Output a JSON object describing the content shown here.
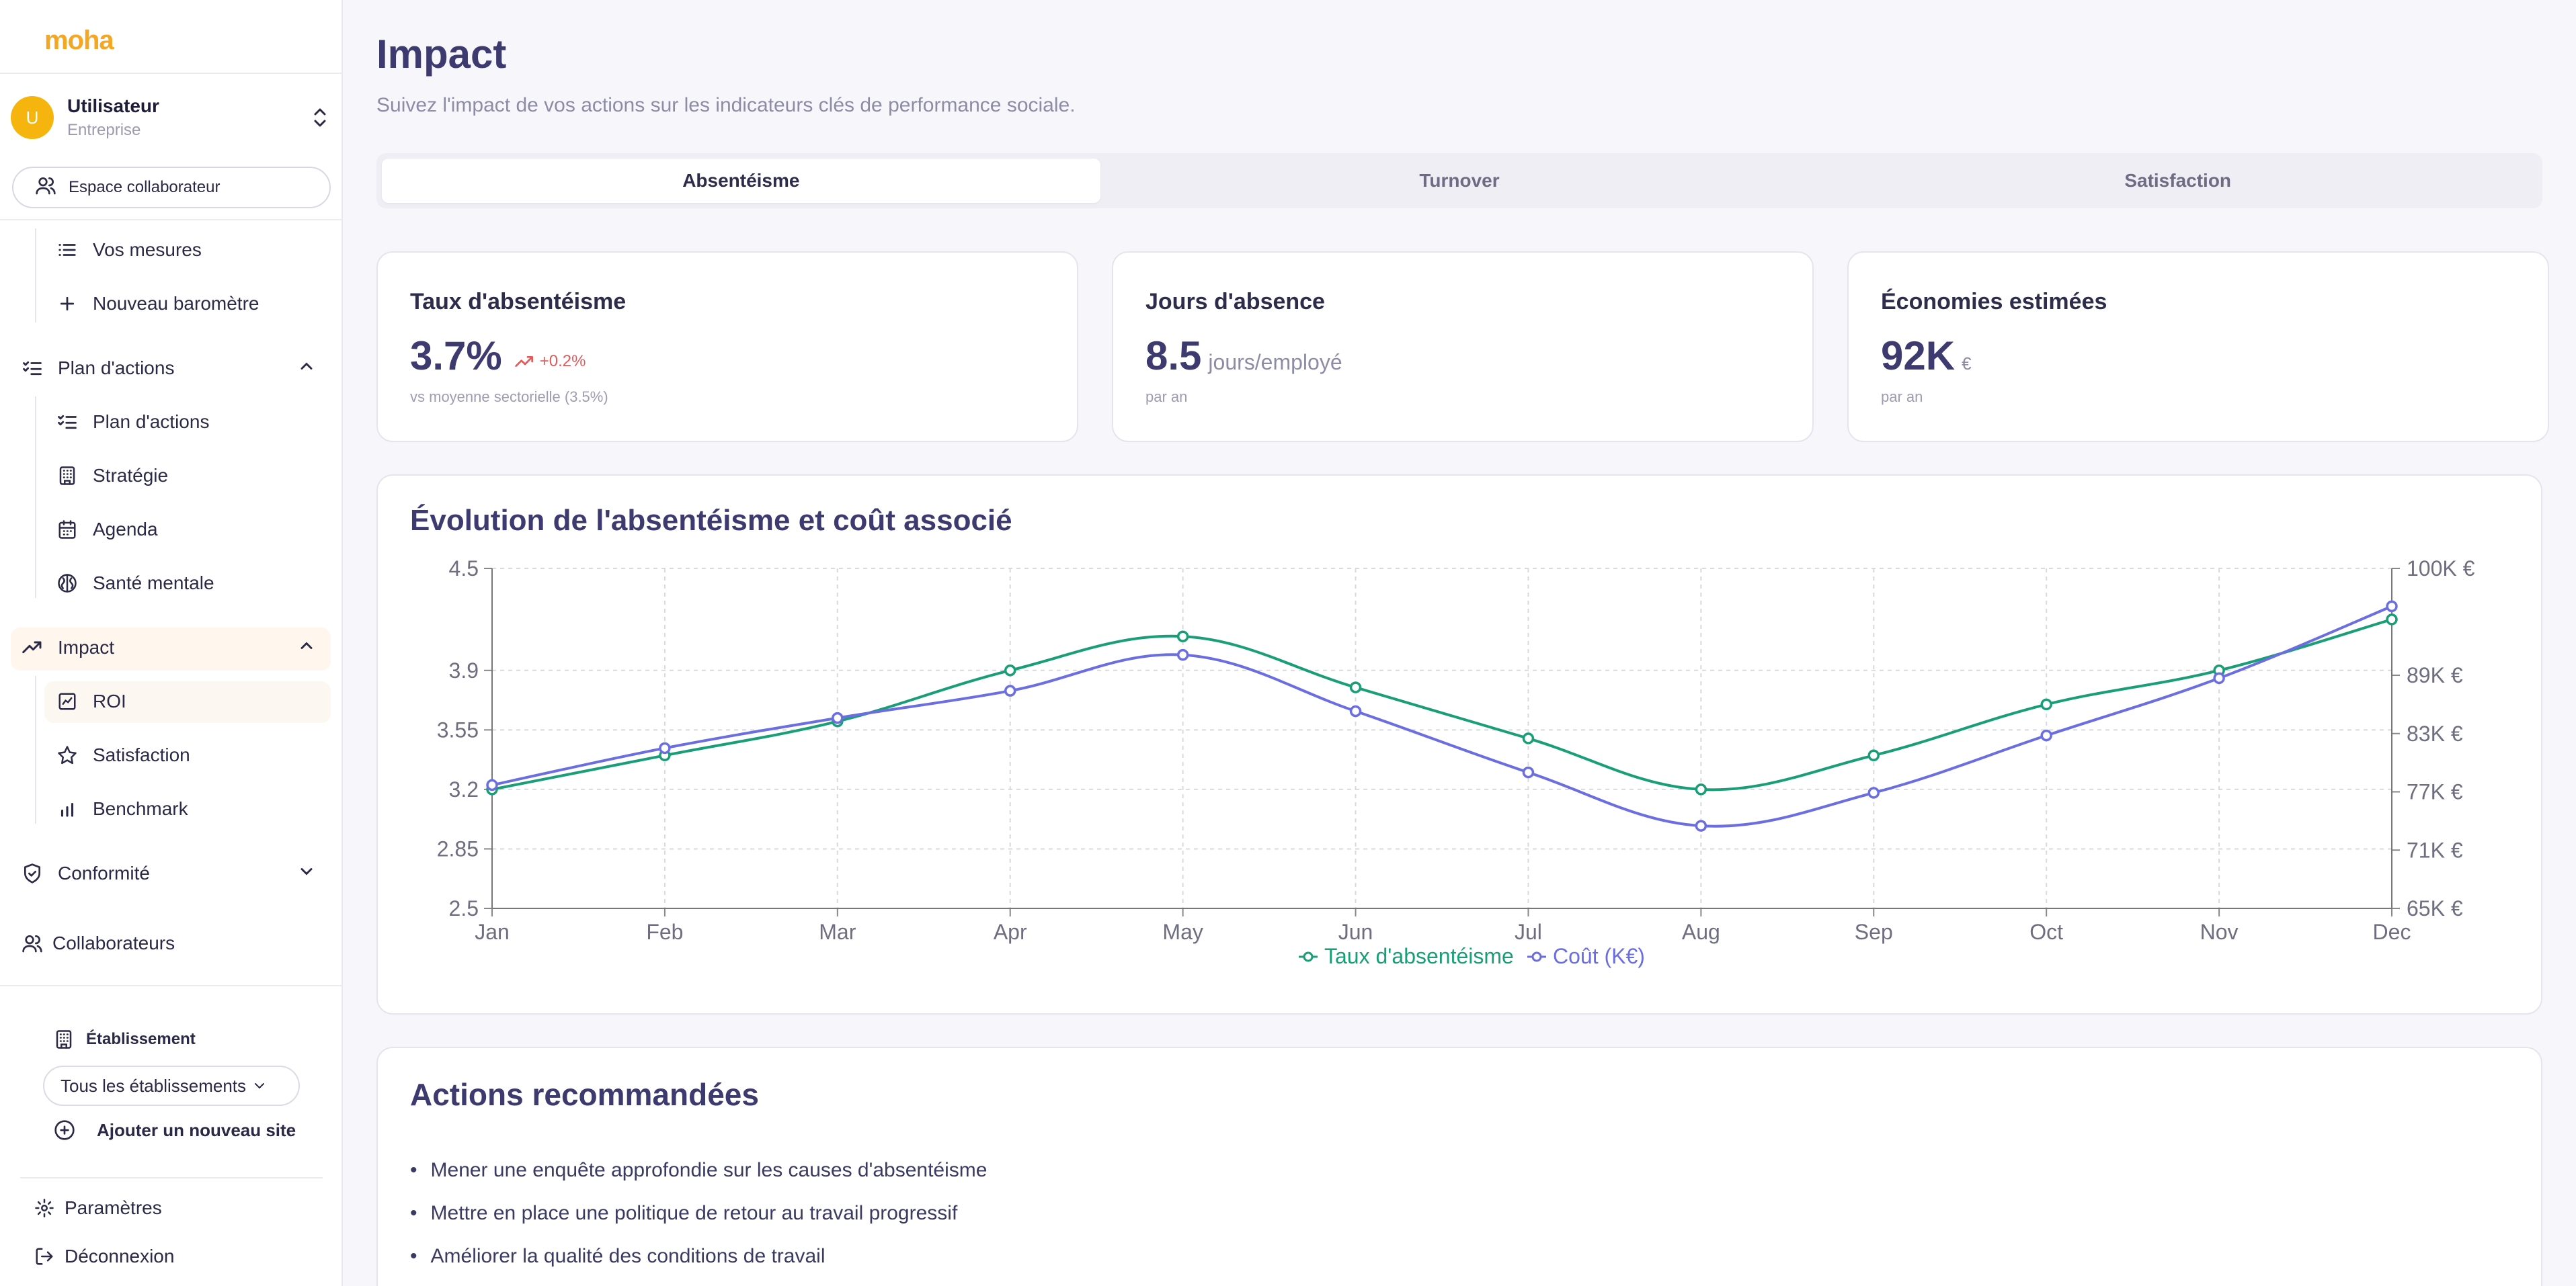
{
  "app": {
    "logo": "moha"
  },
  "user": {
    "initial": "U",
    "name": "Utilisateur",
    "role": "Entreprise"
  },
  "sidebar": {
    "espace_button": "Espace collaborateur",
    "items": [
      {
        "label": "Vos mesures",
        "icon": "list-icon"
      },
      {
        "label": "Nouveau baromètre",
        "icon": "plus-icon"
      },
      {
        "label": "Plan d'actions",
        "icon": "checklist-icon",
        "group": true,
        "expanded": true
      },
      {
        "label": "Plan d'actions",
        "icon": "checklist-icon"
      },
      {
        "label": "Stratégie",
        "icon": "building-icon"
      },
      {
        "label": "Agenda",
        "icon": "calendar-icon"
      },
      {
        "label": "Santé mentale",
        "icon": "brain-icon"
      },
      {
        "label": "Impact",
        "icon": "trending-up-icon",
        "group": true,
        "expanded": true,
        "active": true
      },
      {
        "label": "ROI",
        "icon": "roi-icon",
        "active": true
      },
      {
        "label": "Satisfaction",
        "icon": "star-icon"
      },
      {
        "label": "Benchmark",
        "icon": "bar-chart-icon"
      },
      {
        "label": "Conformité",
        "icon": "shield-check-icon",
        "group": true,
        "expanded": false
      },
      {
        "label": "Collaborateurs",
        "icon": "users-icon"
      }
    ],
    "etablissement_label": "Établissement",
    "etablissement_select": "Tous les établissements",
    "add_site": "Ajouter un nouveau site",
    "settings": "Paramètres",
    "logout": "Déconnexion"
  },
  "page": {
    "title": "Impact",
    "subtitle": "Suivez l'impact de vos actions sur les indicateurs clés de performance sociale.",
    "tabs": [
      "Absentéisme",
      "Turnover",
      "Satisfaction"
    ],
    "active_tab": 0
  },
  "kpis": [
    {
      "title": "Taux d'absentéisme",
      "value": "3.7%",
      "unit": "",
      "trend": "+0.2%",
      "note": "vs moyenne sectorielle (3.5%)"
    },
    {
      "title": "Jours d'absence",
      "value": "8.5",
      "unit": "jours/employé",
      "trend": "",
      "note": "par an"
    },
    {
      "title": "Économies estimées",
      "value": "92K",
      "unit": "€",
      "trend": "",
      "note": "par an"
    }
  ],
  "chart": {
    "title": "Évolution de l'absentéisme et coût associé",
    "legend": [
      "Taux d'absentéisme",
      "Coût (K€)"
    ]
  },
  "chart_data": {
    "type": "line",
    "title": "Évolution de l'absentéisme et coût associé",
    "categories": [
      "Jan",
      "Feb",
      "Mar",
      "Apr",
      "May",
      "Jun",
      "Jul",
      "Aug",
      "Sep",
      "Oct",
      "Nov",
      "Dec"
    ],
    "series": [
      {
        "name": "Taux d'absentéisme",
        "axis": "left",
        "color": "#1a9e78",
        "values": [
          3.2,
          3.4,
          3.6,
          3.9,
          4.1,
          3.8,
          3.5,
          3.2,
          3.4,
          3.7,
          3.9,
          4.2
        ]
      },
      {
        "name": "Coût (K€)",
        "axis": "right",
        "color": "#6b6ee0",
        "values": [
          77.7,
          81.5,
          84.6,
          87.4,
          91.1,
          85.3,
          79.0,
          73.5,
          76.9,
          82.8,
          88.7,
          96.1
        ]
      }
    ],
    "y_left": {
      "min": 2.5,
      "max": 4.5,
      "ticks": [
        "2.5",
        "2.85",
        "3.2",
        "3.55",
        "3.9",
        "4.5"
      ],
      "tick_values": [
        2.5,
        2.85,
        3.2,
        3.55,
        3.9,
        4.5
      ]
    },
    "y_right": {
      "min": 65,
      "max": 100,
      "ticks": [
        "65K €",
        "71K €",
        "77K €",
        "83K €",
        "89K €",
        "100K €"
      ],
      "tick_values": [
        65,
        71,
        77,
        83,
        89,
        100
      ]
    },
    "grid": true,
    "legend_position": "bottom"
  },
  "actions": {
    "title": "Actions recommandées",
    "items": [
      "Mener une enquête approfondie sur les causes d'absentéisme",
      "Mettre en place une politique de retour au travail progressif",
      "Améliorer la qualité des conditions de travail"
    ]
  }
}
